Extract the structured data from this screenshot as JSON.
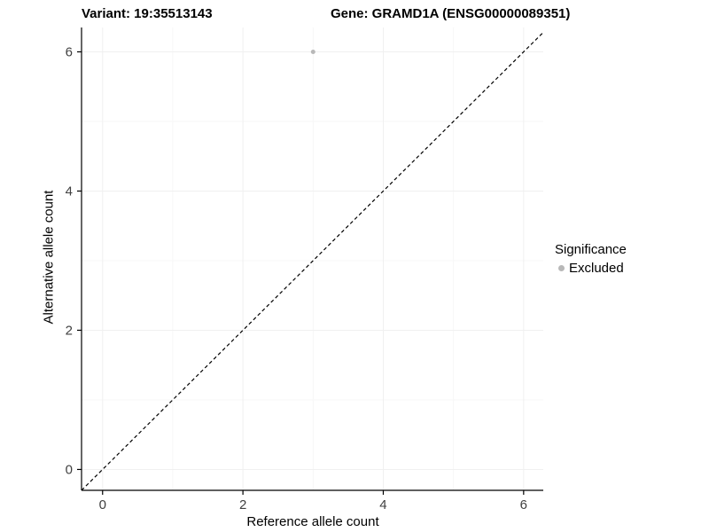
{
  "page": {
    "background": "#ffffff"
  },
  "chart_data": {
    "type": "scatter",
    "title_left": "Variant: 19:35513143",
    "title_right": "Gene: GRAMD1A (ENSG00000089351)",
    "xlabel": "Reference allele count",
    "ylabel": "Alternative allele count",
    "xlim": [
      -0.3,
      6.28
    ],
    "ylim": [
      -0.3,
      6.35
    ],
    "xticks": [
      0,
      2,
      4,
      6
    ],
    "yticks": [
      0,
      2,
      4,
      6
    ],
    "minor_ticks": [
      1,
      3,
      5
    ],
    "grid": true,
    "points": [
      {
        "x": 3,
        "y": 6,
        "series": "Excluded"
      }
    ],
    "identity_line": {
      "style": "dashed",
      "color": "#000000"
    },
    "point_color": "#b8b8b8",
    "point_radius": 2.5,
    "axis_color": "#000000",
    "tick_label_color": "#404040",
    "grid_major_color": "#f0f0f0",
    "grid_minor_color": "#f7f7f7",
    "legend": {
      "title": "Significance",
      "items": [
        {
          "label": "Excluded",
          "color": "#b8b8b8"
        }
      ],
      "position": "right"
    }
  }
}
